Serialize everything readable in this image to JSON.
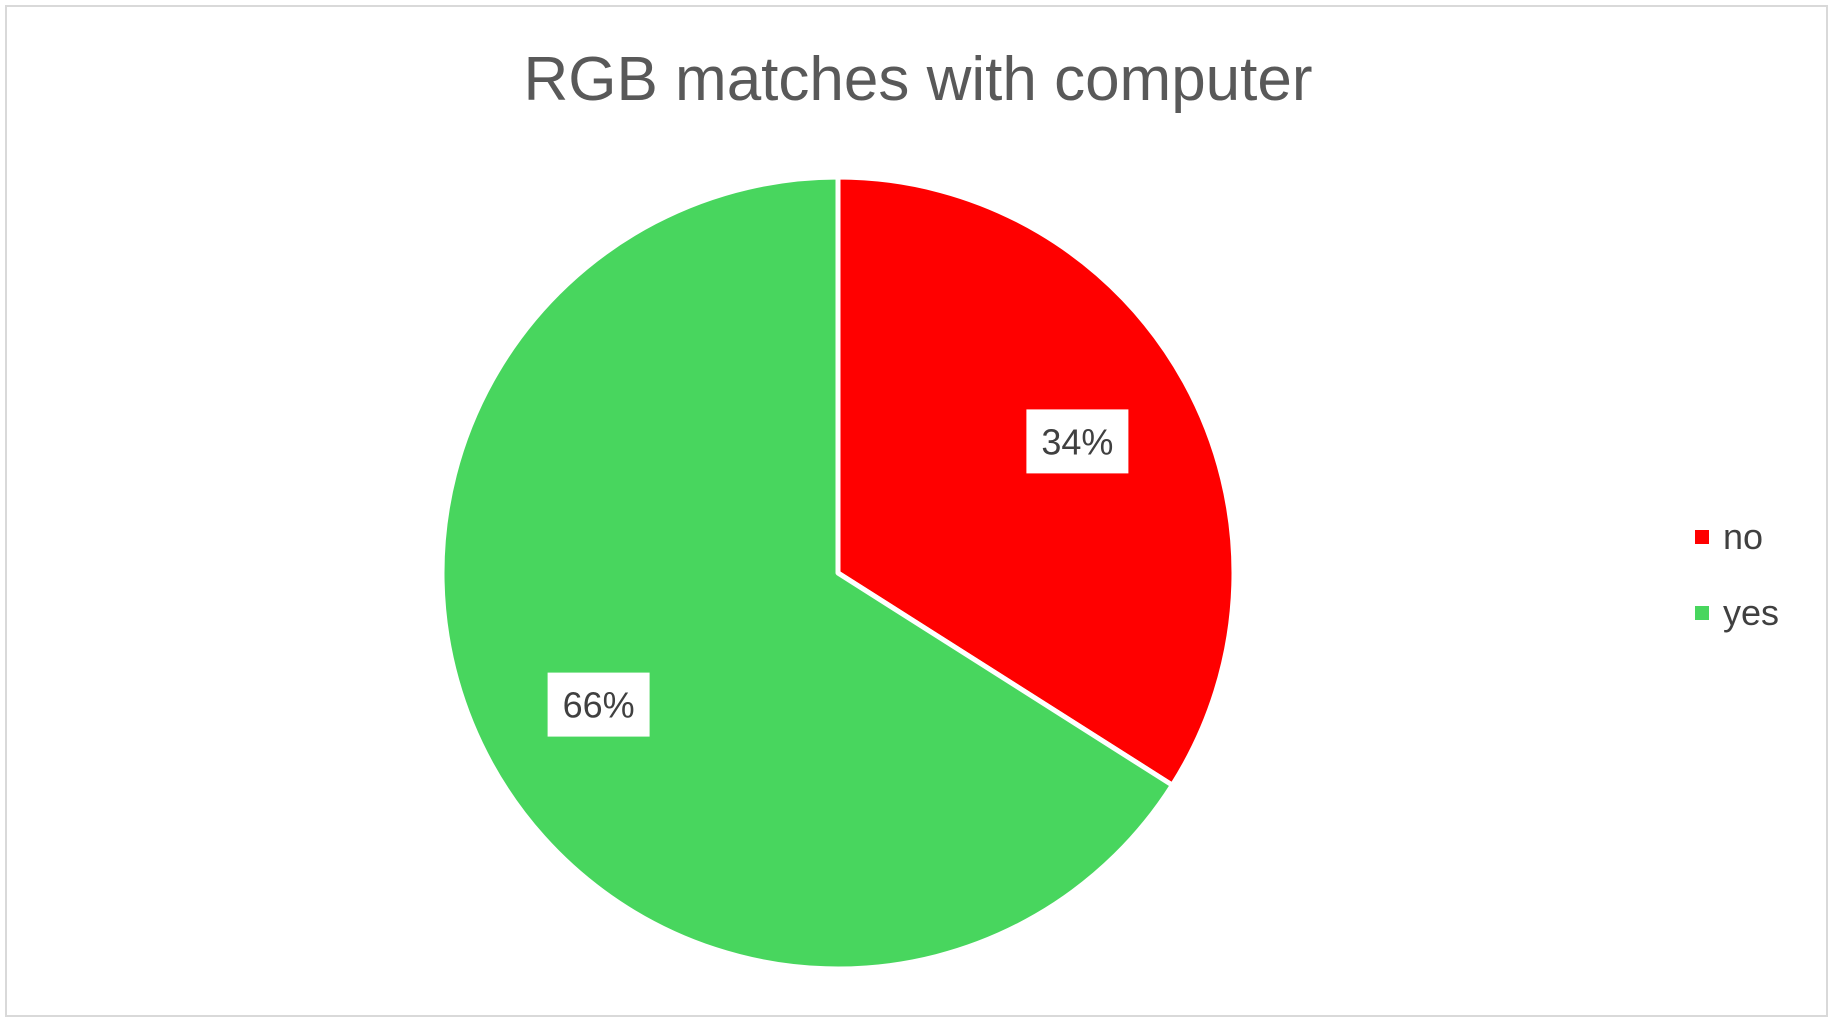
{
  "chart_data": {
    "type": "pie",
    "title": "RGB matches with computer",
    "categories": [
      "no",
      "yes"
    ],
    "values": [
      34,
      66
    ],
    "value_labels": [
      "34%",
      "66%"
    ],
    "colors": [
      "#ff0000",
      "#48d65e"
    ],
    "start_angle_deg": 0,
    "direction": "clockwise",
    "legend_position": "right",
    "legend": [
      {
        "label": "no",
        "color": "#ff0000"
      },
      {
        "label": "yes",
        "color": "#48d65e"
      }
    ]
  }
}
